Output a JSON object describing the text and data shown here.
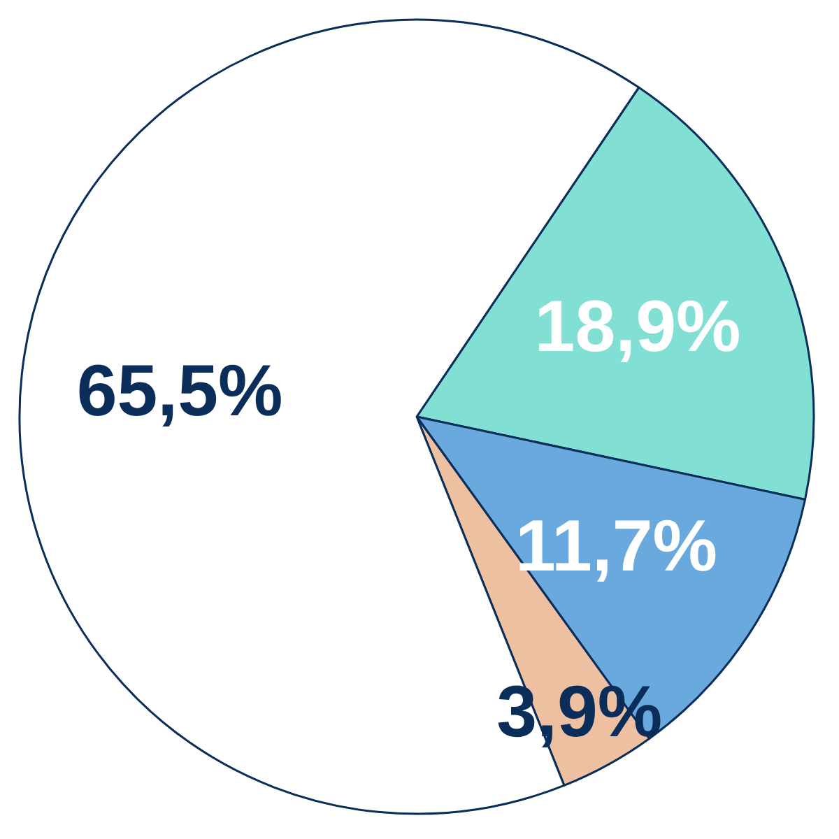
{
  "chart_data": {
    "type": "pie",
    "categories": [
      null,
      null,
      null,
      null
    ],
    "values": [
      18.9,
      11.7,
      3.9,
      65.5
    ],
    "value_labels": [
      "18,9%",
      "11,7%",
      "3,9%",
      "65,5%"
    ],
    "colors": [
      "#82dfd3",
      "#6aa9dd",
      "#eec0a2",
      "#ffffff"
    ]
  }
}
